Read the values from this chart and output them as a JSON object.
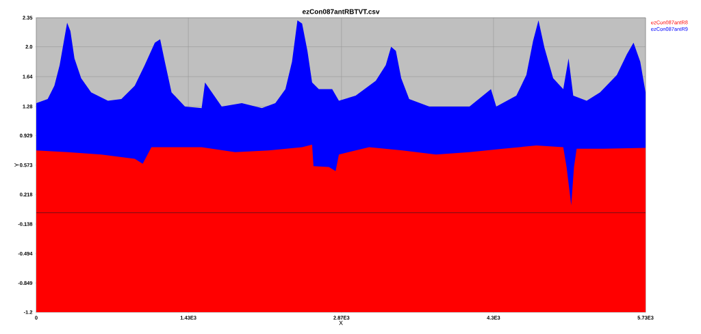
{
  "chart_data": {
    "type": "area",
    "title": "ezCon087antRBTVT.csv",
    "xlabel": "X",
    "ylabel": "Y",
    "xlim": [
      0,
      5730
    ],
    "ylim": [
      -1.2,
      2.35
    ],
    "xticks": [
      0,
      {
        "value": 1430,
        "label": "1.43E3"
      },
      {
        "value": 2870,
        "label": "2.87E3"
      },
      {
        "value": 4300,
        "label": "4.3E3"
      },
      {
        "value": 5730,
        "label": "5.73E3"
      }
    ],
    "yticks": [
      -1.2,
      -0.849,
      -0.494,
      -0.138,
      0.218,
      0.573,
      0.929,
      1.28,
      1.64,
      {
        "value": 2.0,
        "label": "2.0"
      },
      2.35
    ],
    "grid": true,
    "legend": "top right",
    "bands": [
      {
        "axis": "y",
        "from": -1.2,
        "to": 0,
        "color": "#ff0000"
      }
    ],
    "series": [
      {
        "name": "ezCon087antR9",
        "color": "#0000ff",
        "x": [
          0,
          107,
          170,
          220,
          264,
          290,
          321,
          359,
          422,
          516,
          674,
          800,
          926,
          1020,
          1115,
          1165,
          1209,
          1272,
          1398,
          1555,
          1587,
          1744,
          1933,
          2122,
          2248,
          2343,
          2405,
          2456,
          2500,
          2550,
          2594,
          2657,
          2783,
          2846,
          3004,
          3193,
          3287,
          3337,
          3382,
          3432,
          3507,
          3696,
          3854,
          4074,
          4276,
          4326,
          4515,
          4609,
          4672,
          4723,
          4779,
          4861,
          4956,
          5006,
          5050,
          5176,
          5302,
          5460,
          5554,
          5617,
          5680,
          5730
        ],
        "values": [
          1.32,
          1.37,
          1.53,
          1.78,
          2.1,
          2.29,
          2.19,
          1.86,
          1.62,
          1.45,
          1.35,
          1.37,
          1.53,
          1.78,
          2.05,
          2.09,
          1.82,
          1.45,
          1.28,
          1.26,
          1.57,
          1.28,
          1.32,
          1.26,
          1.32,
          1.49,
          1.82,
          2.32,
          2.28,
          1.95,
          1.57,
          1.49,
          1.49,
          1.35,
          1.41,
          1.59,
          1.78,
          2.0,
          1.95,
          1.62,
          1.37,
          1.28,
          1.28,
          1.28,
          1.49,
          1.28,
          1.41,
          1.66,
          2.07,
          2.32,
          1.99,
          1.62,
          1.49,
          1.86,
          1.41,
          1.35,
          1.45,
          1.66,
          1.91,
          2.05,
          1.82,
          1.45
        ]
      },
      {
        "name": "ezCon087antR8",
        "color": "#ff0000",
        "x": [
          0,
          296,
          611,
          926,
          1001,
          1083,
          1555,
          1870,
          2185,
          2500,
          2594,
          2607,
          2752,
          2815,
          2846,
          3130,
          3444,
          3759,
          4074,
          4389,
          4704,
          4956,
          4987,
          5031,
          5057,
          5082,
          5334,
          5730
        ],
        "values": [
          0.75,
          0.73,
          0.7,
          0.65,
          0.59,
          0.79,
          0.79,
          0.73,
          0.75,
          0.79,
          0.82,
          0.56,
          0.55,
          0.5,
          0.7,
          0.79,
          0.75,
          0.7,
          0.73,
          0.77,
          0.81,
          0.79,
          0.55,
          0.09,
          0.55,
          0.77,
          0.77,
          0.78
        ]
      }
    ]
  }
}
